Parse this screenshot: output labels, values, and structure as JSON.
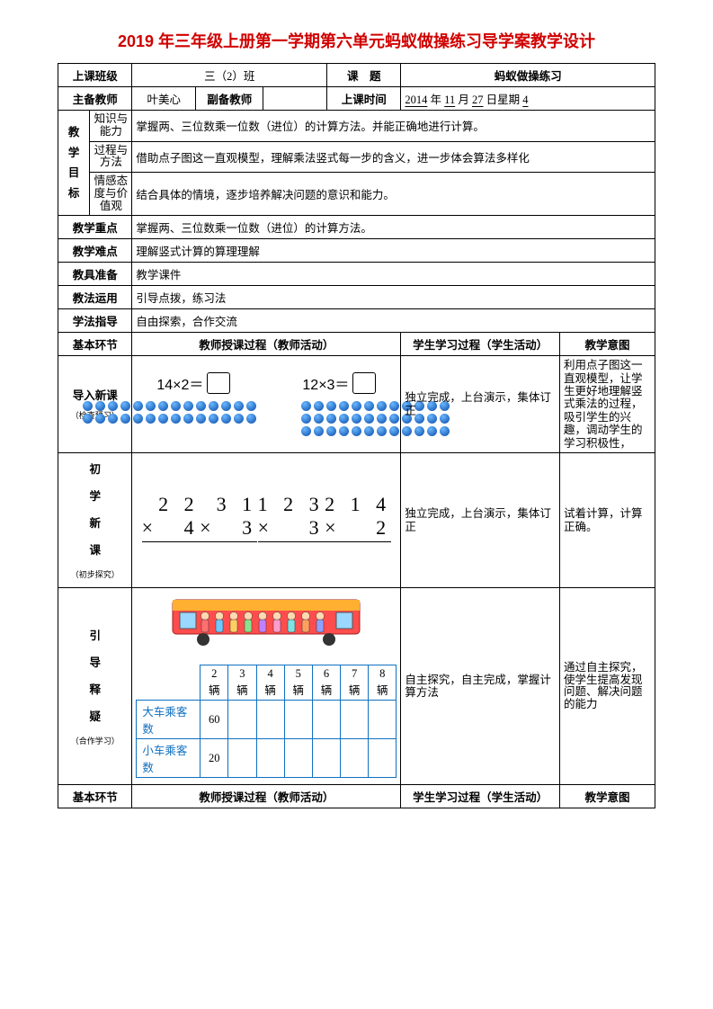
{
  "title": "2019 年三年级上册第一学期第六单元蚂蚁做操练习导学案教学设计",
  "row1": {
    "c1": "上课班级",
    "c2": "三（2）班",
    "c3": "课　题",
    "c4": "蚂蚁做操练习"
  },
  "row2": {
    "c1": "主备教师",
    "c2": "叶美心",
    "c3": "副备教师",
    "c4": "",
    "c5": "上课时间",
    "c6_prefix": "",
    "c6_y": "2014",
    "c6_ym": "年",
    "c6_m": "11",
    "c6_md": "月",
    "c6_d": "27",
    "c6_dd": "日星期",
    "c6_w": "4"
  },
  "goals": {
    "label": "教学目标",
    "r1l": "知识与能力",
    "r1t": "掌握两、三位数乘一位数（进位）的计算方法。并能正确地进行计算。",
    "r2l": "过程与方法",
    "r2t": "借助点子图这一直观模型，理解乘法竖式每一步的含义，进一步体会算法多样化",
    "r3l": "情感态度与价值观",
    "r3t": "结合具体的情境，逐步培养解决问题的意识和能力。"
  },
  "rows": {
    "zd": {
      "l": "教学重点",
      "t": "掌握两、三位数乘一位数（进位）的计算方法。"
    },
    "nd": {
      "l": "教学难点",
      "t": "理解竖式计算的算理理解"
    },
    "zb": {
      "l": "教具准备",
      "t": "教学课件"
    },
    "jf": {
      "l": "教法运用",
      "t": "引导点拨，练习法"
    },
    "xf": {
      "l": "学法指导",
      "t": "自由探索，合作交流"
    }
  },
  "colhdr": {
    "c1": "基本环节",
    "c2": "教师授课过程（教师活动）",
    "c3": "学生学习过程（学生活动）",
    "c4": "教学意图"
  },
  "sec1": {
    "label": "导入新课",
    "sub": "（检查预习）",
    "eq1": "14×2＝",
    "eq2": "12×3＝",
    "grid1_cols": 14,
    "grid1_rows": 2,
    "grid2_cols": 12,
    "grid2_rows": 3,
    "student": "独立完成，上台演示，集体订正",
    "intent": "利用点子图这一直观模型，让学生更好地理解竖式乘法的过程，吸引学生的兴趣，调动学生的学习积极性，",
    "dot_color_outer": "#0a4aa8",
    "dot_color_inner": "#6ab8ff"
  },
  "sec2": {
    "label": "初学新课",
    "sub": "（初步探究）",
    "mults": [
      {
        "top": "2 2",
        "bot": "4"
      },
      {
        "top": "3 1",
        "bot": "3"
      },
      {
        "top": "1 2 3",
        "bot": "3"
      },
      {
        "top": "2 1 4",
        "bot": "2"
      }
    ],
    "student": "独立完成，上台演示，集体订正",
    "intent": "试着计算，计算正确。"
  },
  "sec3": {
    "label": "引导释疑",
    "sub": "（合作学习）",
    "table": {
      "headers": [
        "",
        "2辆",
        "3辆",
        "4辆",
        "5辆",
        "6辆",
        "7辆",
        "8辆"
      ],
      "rows": [
        [
          "大车乘客数",
          "60",
          "",
          "",
          "",
          "",
          "",
          ""
        ],
        [
          "小车乘客数",
          "20",
          "",
          "",
          "",
          "",
          "",
          ""
        ]
      ],
      "border_color": "#1070c0"
    },
    "student": "自主探究，自主完成，掌握计算方法",
    "intent": "通过自主探究，使学生提高发现问题、解决问题的能力"
  }
}
